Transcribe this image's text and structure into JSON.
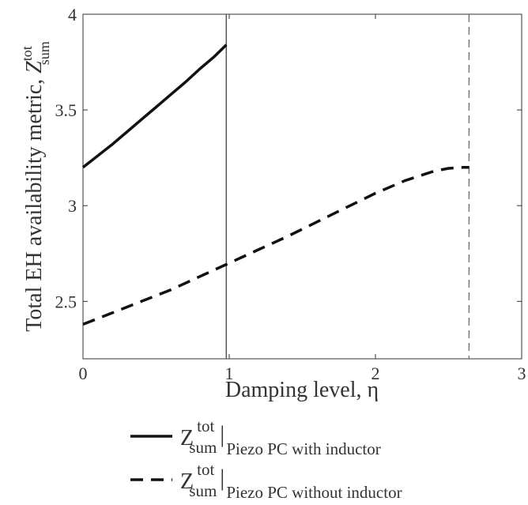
{
  "chart_data": {
    "type": "line",
    "xlabel_main": "Damping level, ",
    "xlabel_symbol": "η",
    "ylabel_main": "Total EH availability metric, ",
    "ylabel_symbol": "Z",
    "ylabel_sup": "tot",
    "ylabel_sub": "sum",
    "xlim": [
      0,
      3
    ],
    "ylim": [
      2.2,
      4
    ],
    "xticks": [
      0,
      1,
      2,
      3
    ],
    "xtick_labels": [
      "0",
      "1",
      "2",
      "3"
    ],
    "yticks": [
      2.5,
      3,
      3.5,
      4
    ],
    "ytick_labels": [
      "2.5",
      "3",
      "3.5",
      "4"
    ],
    "grid": false,
    "legend_position": "bottom",
    "series": [
      {
        "style": "solid",
        "color": "#111111",
        "legend_symbol": "Z",
        "legend_sup": "tot",
        "legend_sub": "sum",
        "legend_subscript_label": "Piezo PC with inductor",
        "x": [
          0,
          0.1,
          0.2,
          0.3,
          0.4,
          0.5,
          0.6,
          0.7,
          0.8,
          0.9,
          0.98
        ],
        "y": [
          3.2,
          3.26,
          3.32,
          3.385,
          3.45,
          3.515,
          3.58,
          3.645,
          3.715,
          3.78,
          3.84
        ]
      },
      {
        "style": "dashed",
        "color": "#111111",
        "legend_symbol": "Z",
        "legend_sup": "tot",
        "legend_sub": "sum",
        "legend_subscript_label": "Piezo PC without inductor",
        "x": [
          0,
          0.2,
          0.4,
          0.6,
          0.8,
          1.0,
          1.2,
          1.4,
          1.6,
          1.8,
          2.0,
          2.2,
          2.4,
          2.5,
          2.6,
          2.64
        ],
        "y": [
          2.38,
          2.44,
          2.5,
          2.56,
          2.63,
          2.7,
          2.77,
          2.84,
          2.915,
          2.99,
          3.065,
          3.13,
          3.18,
          3.195,
          3.2,
          3.2
        ]
      }
    ],
    "vertical_markers": [
      {
        "x": 0.98,
        "style": "solid",
        "color": "#555555"
      },
      {
        "x": 2.64,
        "style": "dashed",
        "color": "#777777"
      }
    ]
  }
}
